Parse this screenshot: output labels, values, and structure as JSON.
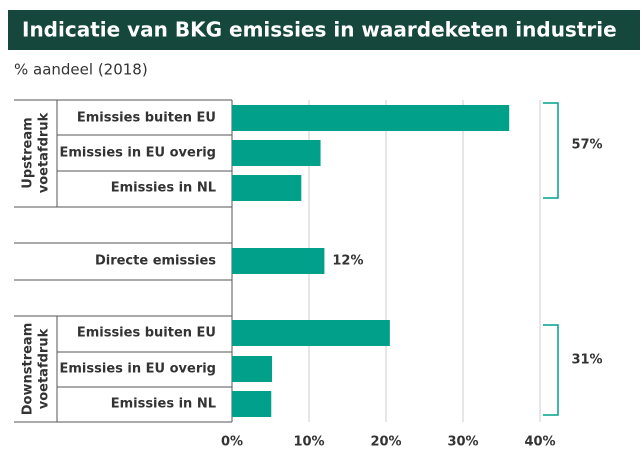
{
  "chart_data": {
    "type": "bar",
    "orientation": "horizontal",
    "title": "Indicatie van BKG emissies in waardeketen industrie",
    "subtitle": "% aandeel (2018)",
    "categories": [
      "Emissies buiten EU",
      "Emissies in EU overig",
      "Emissies in NL",
      null,
      "Directe emissies",
      null,
      "Emissies buiten EU",
      "Emissies in EU overig",
      "Emissies in NL"
    ],
    "values": [
      36,
      11.5,
      9,
      null,
      12,
      null,
      20.5,
      5.2,
      5.1
    ],
    "value_labels": [
      null,
      null,
      null,
      null,
      "12%",
      null,
      null,
      null,
      null
    ],
    "color": "#00a08a",
    "groups": [
      {
        "label": [
          "Upstream",
          "voetafdruk"
        ],
        "total": "57%"
      },
      {
        "label": [
          "Downstream",
          "voetafdruk"
        ],
        "total": "31%"
      }
    ],
    "xlim": [
      0,
      40
    ],
    "xticks": [
      {
        "value": 0,
        "label": "0%"
      },
      {
        "value": 10,
        "label": "10%"
      },
      {
        "value": 20,
        "label": "20%"
      },
      {
        "value": 30,
        "label": "30%"
      },
      {
        "value": 40,
        "label": "40%"
      }
    ],
    "grid": true
  }
}
